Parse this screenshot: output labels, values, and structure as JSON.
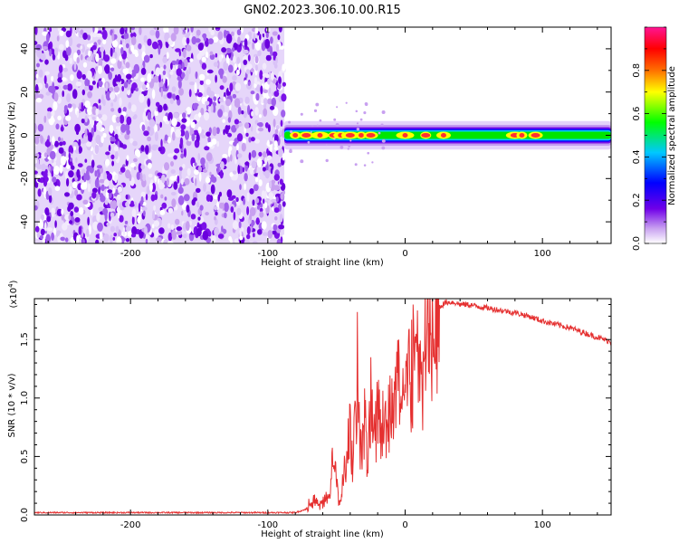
{
  "title": "GN02.2023.306.10.00.R15",
  "chart_data": [
    {
      "type": "heatmap",
      "title": "GN02.2023.306.10.00.R15",
      "xlabel": "Height of straight line (km)",
      "ylabel": "Frequency (Hz)",
      "xlim": [
        -270,
        150
      ],
      "ylim": [
        -50,
        50
      ],
      "xticks": [
        -200,
        -100,
        0,
        100
      ],
      "xtick_labels": [
        "-200",
        "-100",
        "0",
        "100"
      ],
      "yticks": [
        -40,
        -20,
        0,
        20,
        40
      ],
      "ytick_labels": [
        "-40",
        "-20",
        "0",
        "20",
        "40"
      ],
      "noise_region_x": [
        -270,
        -88
      ],
      "signal_band_x": [
        -88,
        150
      ],
      "signal_band_center_hz": 0,
      "signal_band_halfwidth_hz": 3,
      "colorbar": {
        "label": "Normalized spectral amplitude",
        "range": [
          0,
          1
        ],
        "ticks": [
          0.0,
          0.2,
          0.4,
          0.6,
          0.8
        ],
        "tick_labels": [
          "0.0",
          "0.2",
          "0.4",
          "0.6",
          "0.8"
        ],
        "colormap": [
          "#ffffff",
          "#c8a0f0",
          "#7000e8",
          "#0000ff",
          "#00c8ff",
          "#00ff00",
          "#ffff00",
          "#ff7000",
          "#ff0000",
          "#ff1493"
        ]
      },
      "grid": false
    },
    {
      "type": "line",
      "xlabel": "Height of straight line (km)",
      "ylabel": "SNR (10 * v/v)",
      "y_multiplier": "(x10",
      "y_multiplier_exp": "4",
      "y_multiplier_close": ")",
      "xlim": [
        -270,
        150
      ],
      "ylim": [
        0,
        1.85
      ],
      "xticks": [
        -200,
        -100,
        0,
        100
      ],
      "xtick_labels": [
        "-200",
        "-100",
        "0",
        "100"
      ],
      "yticks": [
        0.0,
        0.5,
        1.0,
        1.5
      ],
      "ytick_labels": [
        "0.0",
        "0.5",
        "1.0",
        "1.5"
      ],
      "series": [
        {
          "color": "#e53030",
          "x": [
            -270,
            -200,
            -150,
            -100,
            -80,
            -72,
            -68,
            -62,
            -55,
            -52,
            -50,
            -48,
            -45,
            -40,
            -38,
            -35,
            -32,
            -30,
            -27,
            -25,
            -22,
            -20,
            -17,
            -15,
            -12,
            -10,
            -8,
            -5,
            -3,
            0,
            3,
            5,
            8,
            10,
            12,
            15,
            20,
            25,
            30,
            35,
            40,
            45,
            50,
            60,
            70,
            80,
            90,
            100,
            110,
            120,
            130,
            140,
            150
          ],
          "y": [
            0.02,
            0.02,
            0.02,
            0.02,
            0.02,
            0.05,
            0.15,
            0.08,
            0.2,
            0.6,
            0.3,
            0.1,
            0.35,
            0.8,
            0.55,
            1.42,
            0.6,
            1.0,
            0.45,
            1.22,
            0.7,
            1.15,
            0.8,
            1.1,
            0.9,
            1.2,
            1.05,
            1.3,
            1.2,
            1.32,
            1.4,
            1.5,
            1.55,
            1.6,
            1.62,
            1.7,
            1.74,
            1.78,
            1.82,
            1.82,
            1.8,
            1.8,
            1.79,
            1.77,
            1.75,
            1.73,
            1.7,
            1.66,
            1.63,
            1.6,
            1.56,
            1.52,
            1.48
          ]
        }
      ],
      "grid": false
    }
  ]
}
